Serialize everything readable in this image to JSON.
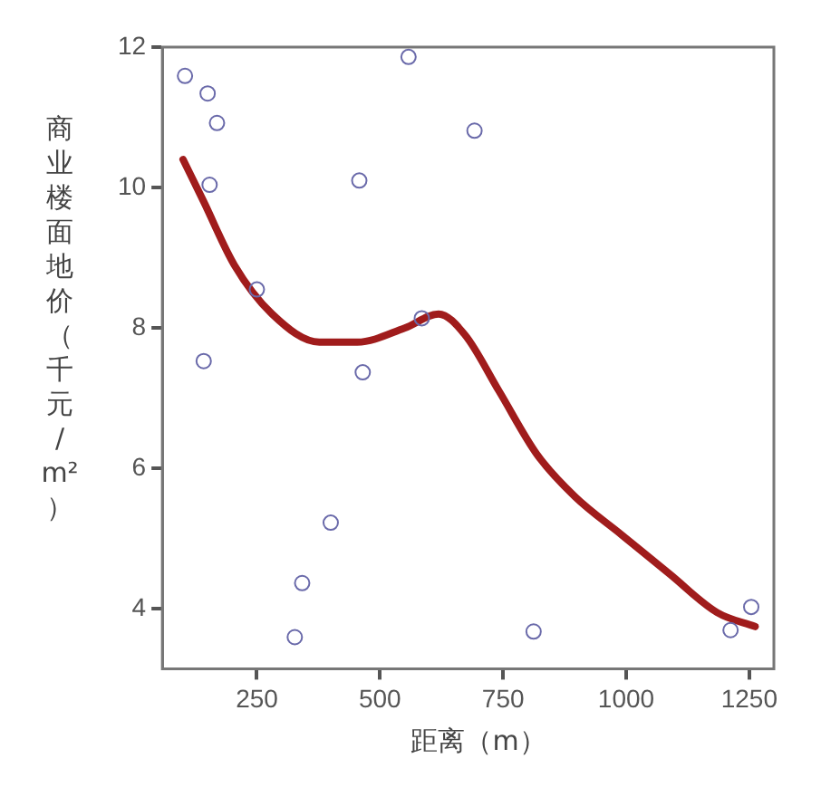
{
  "chart_data": {
    "type": "scatter",
    "xlabel": "距离（m）",
    "ylabel": "商业楼面地价（千元/m²）",
    "xlim": [
      58,
      1300
    ],
    "xticks": [
      250,
      500,
      750,
      1000,
      1250
    ],
    "ylim": [
      3.15,
      12
    ],
    "yticks": [
      4,
      6,
      8,
      10,
      12
    ],
    "grid": false,
    "legend": false,
    "series": [
      {
        "color": "#6a6aaa",
        "marker": "circle",
        "x": [
          104,
          150,
          169,
          154,
          142,
          250,
          327,
          342,
          400,
          458,
          465,
          558,
          585,
          692,
          812,
          1212,
          1254
        ],
        "values": [
          11.59,
          11.34,
          10.92,
          10.04,
          7.53,
          8.55,
          3.6,
          4.37,
          5.23,
          10.1,
          7.37,
          11.86,
          8.14,
          10.81,
          3.68,
          3.7,
          4.03
        ]
      },
      {
        "type": "line",
        "color": "#a01c1c",
        "marker": "none",
        "line_style": "solid",
        "x": [
          100,
          142,
          204,
          281,
          377,
          454,
          550,
          619,
          673,
          742,
          819,
          896,
          992,
          1088,
          1185,
          1262
        ],
        "values": [
          10.4,
          9.8,
          8.9,
          8.2,
          7.8,
          7.8,
          8.0,
          8.2,
          7.9,
          7.1,
          6.2,
          5.6,
          5.05,
          4.5,
          3.95,
          3.75
        ]
      }
    ]
  }
}
